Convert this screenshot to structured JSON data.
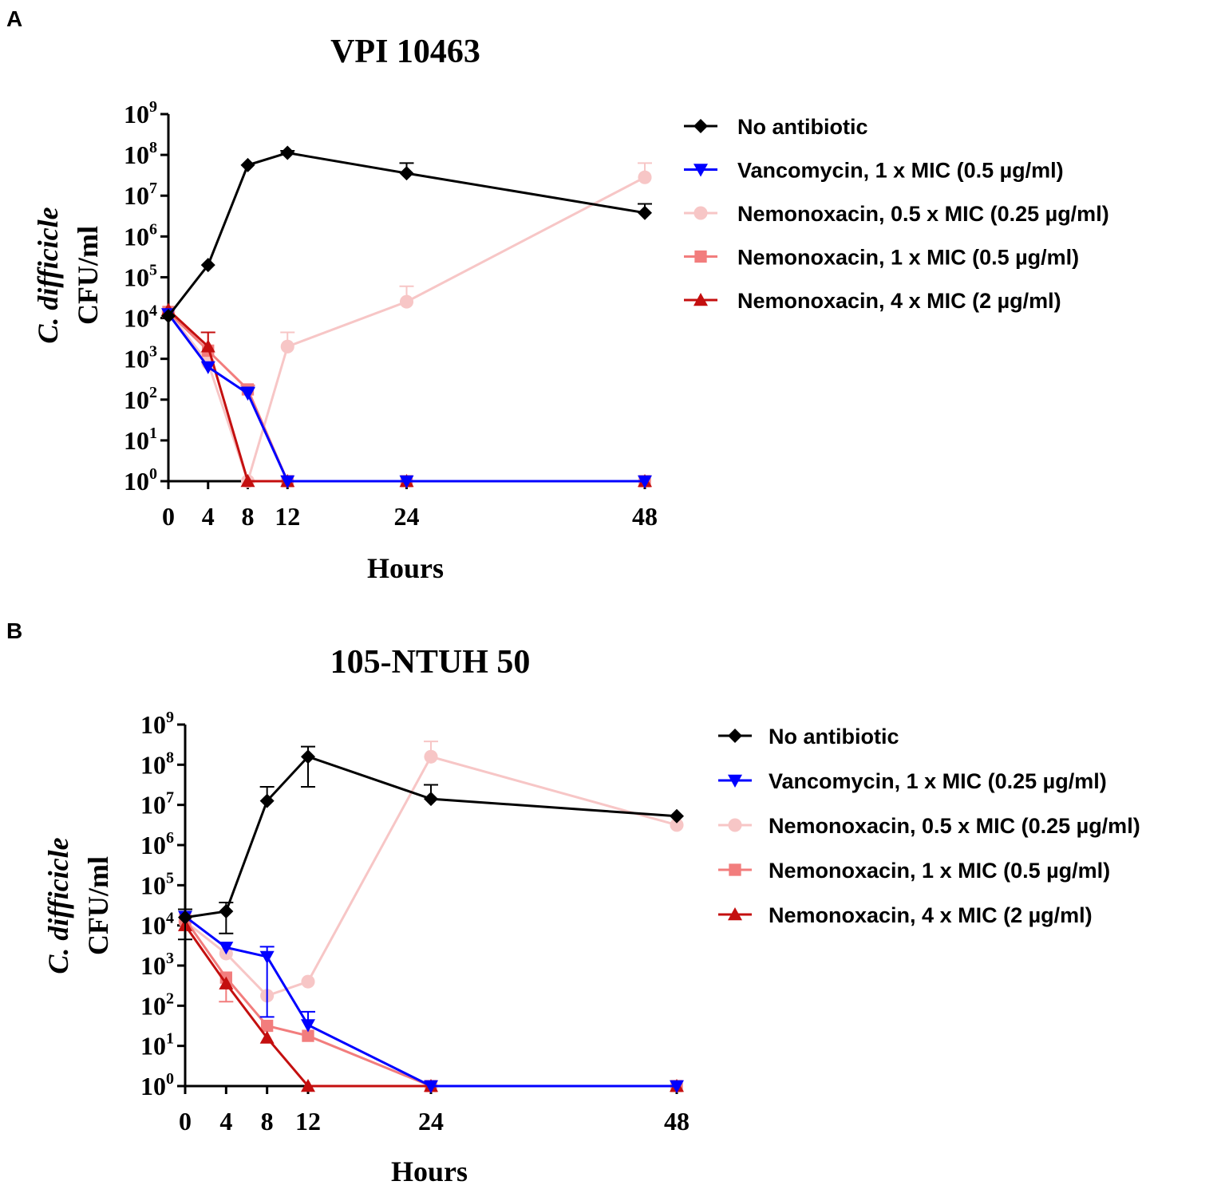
{
  "panels": [
    {
      "letter": "A"
    },
    {
      "letter": "B"
    }
  ],
  "chart_data": [
    {
      "type": "line",
      "title": "VPI 10463",
      "xlabel": "Hours",
      "ylabel_italic": "C. difficicle",
      "ylabel": "CFU/ml",
      "y_scale": "log",
      "ylim": [
        1,
        1000000000
      ],
      "yticks": [
        {
          "base": "10",
          "exp": "0"
        },
        {
          "base": "10",
          "exp": "1"
        },
        {
          "base": "10",
          "exp": "2"
        },
        {
          "base": "10",
          "exp": "3"
        },
        {
          "base": "10",
          "exp": "4"
        },
        {
          "base": "10",
          "exp": "5"
        },
        {
          "base": "10",
          "exp": "6"
        },
        {
          "base": "10",
          "exp": "7"
        },
        {
          "base": "10",
          "exp": "8"
        },
        {
          "base": "10",
          "exp": "9"
        }
      ],
      "x": [
        0,
        4,
        8,
        12,
        24,
        48
      ],
      "xtick_labels": [
        "0",
        "4",
        "8",
        "12",
        "24",
        "48"
      ],
      "xlim": [
        0,
        48
      ],
      "series": [
        {
          "name": "No antibiotic",
          "color": "#000000",
          "marker": "diamond",
          "x": [
            0,
            4,
            8,
            12,
            24,
            48
          ],
          "log_values": [
            4.05,
            5.3,
            7.75,
            8.05,
            7.55,
            6.58
          ],
          "err_up": [
            0,
            0,
            0,
            0.05,
            0.25,
            0.22
          ]
        },
        {
          "name": "Vancomycin,  1 x MIC (0.5 µg/ml)",
          "color": "#0000ff",
          "marker": "triangle-down",
          "x": [
            0,
            4,
            8,
            12,
            24,
            48
          ],
          "log_values": [
            4.1,
            2.8,
            2.15,
            0,
            0,
            0
          ],
          "err_up": [
            0,
            0,
            0.15,
            0,
            0,
            0
          ]
        },
        {
          "name": "Nemonoxacin, 0.5 x MIC (0.25 µg/ml)",
          "color": "#f7c6c6",
          "marker": "circle",
          "x": [
            0,
            4,
            8,
            12,
            24,
            48
          ],
          "log_values": [
            4.15,
            2.9,
            0,
            3.3,
            4.4,
            7.45
          ],
          "err_up": [
            0,
            0,
            0,
            0.35,
            0.38,
            0.35
          ]
        },
        {
          "name": "Nemonoxacin, 1 x MIC (0.5 µg/ml)",
          "color": "#f27d7d",
          "marker": "square",
          "x": [
            0,
            4,
            8,
            12,
            24,
            48
          ],
          "log_values": [
            4.15,
            3.2,
            2.25,
            0,
            0,
            0
          ],
          "err_up": [
            0,
            0.45,
            0.1,
            0,
            0,
            0
          ]
        },
        {
          "name": "Nemonoxacin, 4 x MIC (2 µg/ml)",
          "color": "#c40f0f",
          "marker": "triangle-up",
          "x": [
            0,
            4,
            8,
            12,
            24,
            48
          ],
          "log_values": [
            4.2,
            3.3,
            0,
            0,
            0,
            0
          ],
          "err_up": [
            0,
            0.35,
            0,
            0,
            0,
            0
          ]
        }
      ]
    },
    {
      "type": "line",
      "title": "105-NTUH 50",
      "xlabel": "Hours",
      "ylabel_italic": "C. difficicle",
      "ylabel": "CFU/ml",
      "y_scale": "log",
      "ylim": [
        1,
        1000000000
      ],
      "yticks": [
        {
          "base": "10",
          "exp": "0"
        },
        {
          "base": "10",
          "exp": "1"
        },
        {
          "base": "10",
          "exp": "2"
        },
        {
          "base": "10",
          "exp": "3"
        },
        {
          "base": "10",
          "exp": "4"
        },
        {
          "base": "10",
          "exp": "5"
        },
        {
          "base": "10",
          "exp": "6"
        },
        {
          "base": "10",
          "exp": "7"
        },
        {
          "base": "10",
          "exp": "8"
        },
        {
          "base": "10",
          "exp": "9"
        }
      ],
      "x": [
        0,
        4,
        8,
        12,
        24,
        48
      ],
      "xtick_labels": [
        "0",
        "4",
        "8",
        "12",
        "24",
        "48"
      ],
      "xlim": [
        0,
        48
      ],
      "series": [
        {
          "name": "No antibiotic",
          "color": "#000000",
          "marker": "diamond",
          "x": [
            0,
            4,
            8,
            12,
            24,
            48
          ],
          "log_values": [
            4.2,
            4.35,
            7.1,
            8.2,
            7.15,
            6.72
          ],
          "err_up": [
            0.2,
            0.22,
            0.35,
            0.25,
            0.35,
            0
          ],
          "err_down": [
            0.55,
            0.55,
            0,
            0.75,
            0,
            0
          ]
        },
        {
          "name": "Vancomycin,  1 x MIC (0.25 µg/ml)",
          "color": "#0000ff",
          "marker": "triangle-down",
          "x": [
            0,
            4,
            8,
            12,
            24,
            48
          ],
          "log_values": [
            4.22,
            3.45,
            3.22,
            1.52,
            0,
            0
          ],
          "err_up": [
            0,
            0,
            0.25,
            0.33,
            0,
            0
          ],
          "err_down": [
            0,
            0,
            1.5,
            0,
            0,
            0
          ]
        },
        {
          "name": "Nemonoxacin, 0.5 x MIC (0.25 µg/ml)",
          "color": "#f7c6c6",
          "marker": "circle",
          "x": [
            0,
            4,
            8,
            12,
            24,
            48
          ],
          "log_values": [
            4.1,
            3.3,
            2.25,
            2.6,
            8.2,
            6.5
          ],
          "err_up": [
            0,
            0,
            0,
            0,
            0.38,
            0
          ],
          "err_down": [
            0,
            0,
            0,
            0,
            0,
            0
          ]
        },
        {
          "name": "Nemonoxacin, 1 x MIC (0.5 µg/ml)",
          "color": "#f27d7d",
          "marker": "square",
          "x": [
            0,
            4,
            8,
            12,
            24,
            48
          ],
          "log_values": [
            4.15,
            2.7,
            1.5,
            1.25,
            0,
            0
          ],
          "err_up": [
            0,
            0,
            0,
            0,
            0,
            0
          ],
          "err_down": [
            0,
            0.6,
            0,
            0,
            0,
            0
          ]
        },
        {
          "name": "Nemonoxacin, 4 x MIC (2 µg/ml)",
          "color": "#c40f0f",
          "marker": "triangle-up",
          "x": [
            0,
            4,
            8,
            12,
            24,
            48
          ],
          "log_values": [
            4.0,
            2.55,
            1.2,
            0,
            0,
            0
          ],
          "err_up": [
            0,
            0,
            0,
            0,
            0,
            0
          ],
          "err_down": [
            0,
            0,
            0,
            0,
            0,
            0
          ]
        }
      ]
    }
  ]
}
